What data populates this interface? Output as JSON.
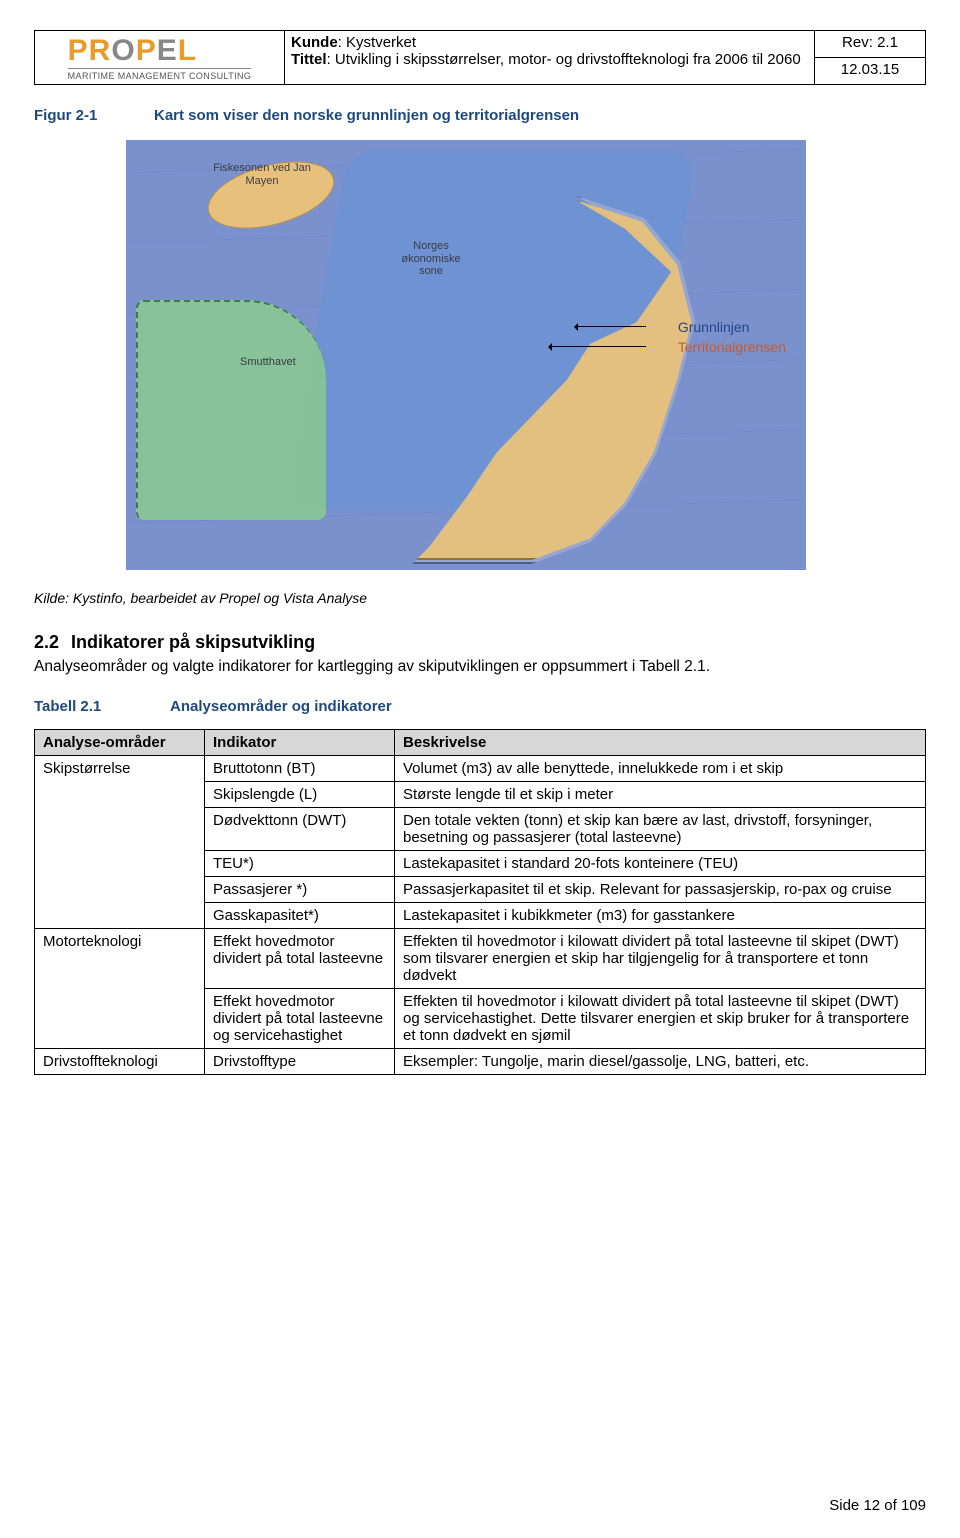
{
  "header": {
    "logo_main": "PROPEL",
    "logo_sub": "MARITIME MANAGEMENT CONSULTING",
    "kunde_label": "Kunde",
    "kunde_value": "Kystverket",
    "tittel_label": "Tittel",
    "tittel_value": "Utvikling i skipsstørrelser, motor- og drivstoffteknologi fra 2006 til 2060",
    "rev_label": "Rev",
    "rev_value": "2.1",
    "date": "12.03.15"
  },
  "figure": {
    "label": "Figur 2-1",
    "title": "Kart som viser den norske grunnlinjen og territorialgrensen",
    "map_labels": {
      "fiskesonen": "Fiskesonen ved Jan Mayen",
      "okonomisk": "Norges økonomiske sone",
      "smutthavet": "Smutthavet"
    },
    "legend_grunnlinjen": "Grunnlinjen",
    "legend_territorial": "Territorialgrensen",
    "source": "Kilde: Kystinfo, bearbeidet av Propel og Vista Analyse"
  },
  "section": {
    "num": "2.2",
    "title": "Indikatorer på skipsutvikling",
    "para": "Analyseområder og valgte indikatorer for kartlegging av skiputviklingen er oppsummert i Tabell 2.1."
  },
  "table": {
    "label": "Tabell 2.1",
    "title": "Analyseområder og indikatorer",
    "headers": {
      "a": "Analyse-områder",
      "b": "Indikator",
      "c": "Beskrivelse"
    },
    "groups": [
      {
        "area": "Skipstørrelse",
        "rows": [
          {
            "ind": "Bruttotonn (BT)",
            "desc": "Volumet (m3) av alle benyttede, innelukkede rom i et skip"
          },
          {
            "ind": "Skipslengde (L)",
            "desc": "Største lengde til et skip i meter"
          },
          {
            "ind": "Dødvekttonn (DWT)",
            "desc": "Den totale vekten (tonn) et skip kan bære av last, drivstoff, forsyninger, besetning og passasjerer (total lasteevne)"
          },
          {
            "ind": "TEU*)",
            "desc": "Lastekapasitet i standard 20-fots konteinere (TEU)"
          },
          {
            "ind": "Passasjerer *)",
            "desc": "Passasjerkapasitet til et skip. Relevant for passasjerskip, ro-pax og cruise"
          },
          {
            "ind": "Gasskapasitet*)",
            "desc": "Lastekapasitet i kubikkmeter (m3) for gasstankere"
          }
        ]
      },
      {
        "area": "Motorteknologi",
        "rows": [
          {
            "ind": "Effekt hovedmotor dividert på total lasteevne",
            "desc": "Effekten til hovedmotor i kilowatt dividert på total lasteevne til skipet (DWT) som tilsvarer energien et skip har tilgjengelig for å transportere et tonn dødvekt"
          },
          {
            "ind": "Effekt hovedmotor dividert på total lasteevne og servicehastighet",
            "desc": "Effekten til hovedmotor i kilowatt dividert på total lasteevne til skipet (DWT) og servicehastighet. Dette tilsvarer energien et skip bruker for å transportere et tonn dødvekt en sjømil"
          }
        ]
      },
      {
        "area": "Drivstoffteknologi",
        "rows": [
          {
            "ind": "Drivstofftype",
            "desc": "Eksempler: Tungolje, marin diesel/gassolje, LNG, batteri, etc."
          }
        ]
      }
    ]
  },
  "footer": {
    "page": "Side 12 of 109"
  }
}
